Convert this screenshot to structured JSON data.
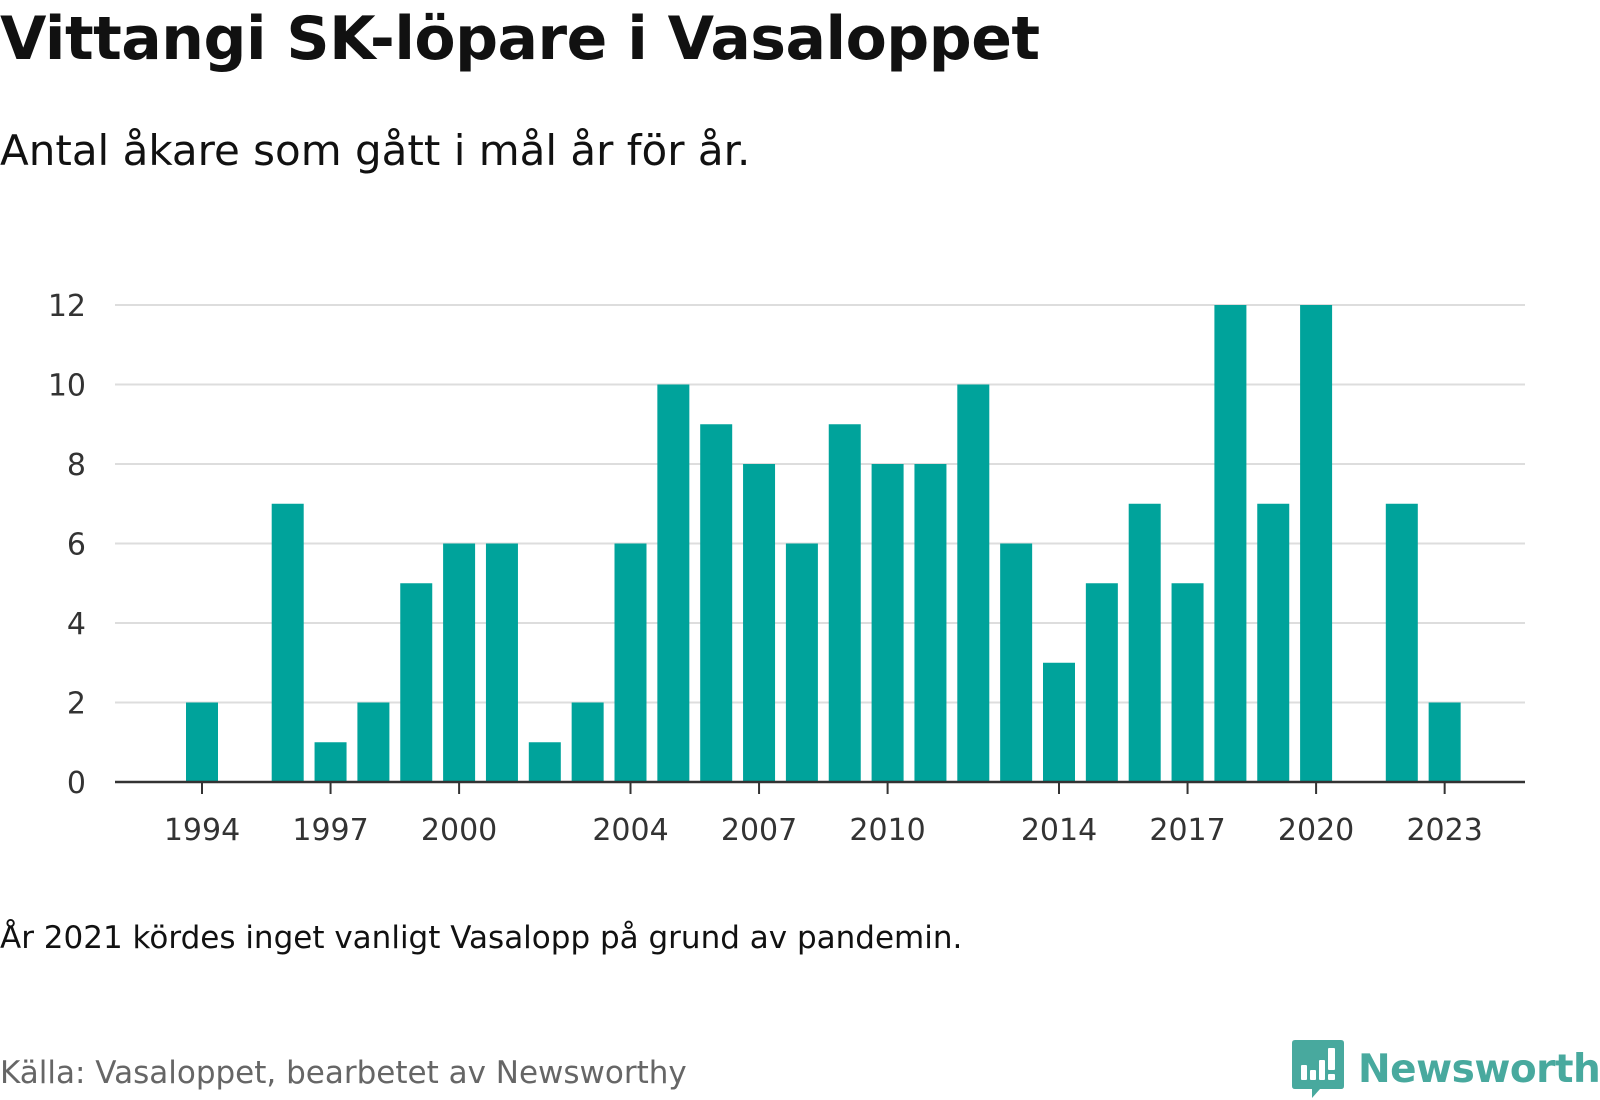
{
  "title": "Vittangi SK-löpare i Vasaloppet",
  "subtitle": "Antal åkare som gått i mål år för år.",
  "note": "År 2021 kördes inget vanligt Vasalopp på grund av pandemin.",
  "source": "Källa: Vasaloppet, bearbetet av Newsworthy",
  "brand": {
    "name": "Newsworthy",
    "icon": "newsworthy-logo-icon",
    "color": "#48a99e"
  },
  "colors": {
    "bar": "#00a39b",
    "grid": "#dddddd",
    "axis": "#333333"
  },
  "chart_data": {
    "type": "bar",
    "categories": [
      "1994",
      "1995",
      "1996",
      "1997",
      "1998",
      "1999",
      "2000",
      "2001",
      "2002",
      "2003",
      "2004",
      "2005",
      "2006",
      "2007",
      "2008",
      "2009",
      "2010",
      "2011",
      "2012",
      "2013",
      "2014",
      "2015",
      "2016",
      "2017",
      "2018",
      "2019",
      "2020",
      "2021",
      "2022",
      "2023"
    ],
    "values": [
      2,
      0,
      7,
      1,
      2,
      5,
      6,
      6,
      1,
      2,
      6,
      10,
      9,
      8,
      6,
      9,
      8,
      8,
      10,
      6,
      3,
      5,
      7,
      5,
      12,
      7,
      12,
      null,
      7,
      2
    ],
    "x_tick_labels": [
      "1994",
      "1997",
      "2000",
      "2004",
      "2007",
      "2010",
      "2014",
      "2017",
      "2020",
      "2023"
    ],
    "y_ticks": [
      "0",
      "2",
      "4",
      "6",
      "8",
      "10",
      "12"
    ],
    "ylim": [
      0,
      12
    ],
    "xlabel": "",
    "ylabel": "",
    "grid": true,
    "legend": "none"
  }
}
